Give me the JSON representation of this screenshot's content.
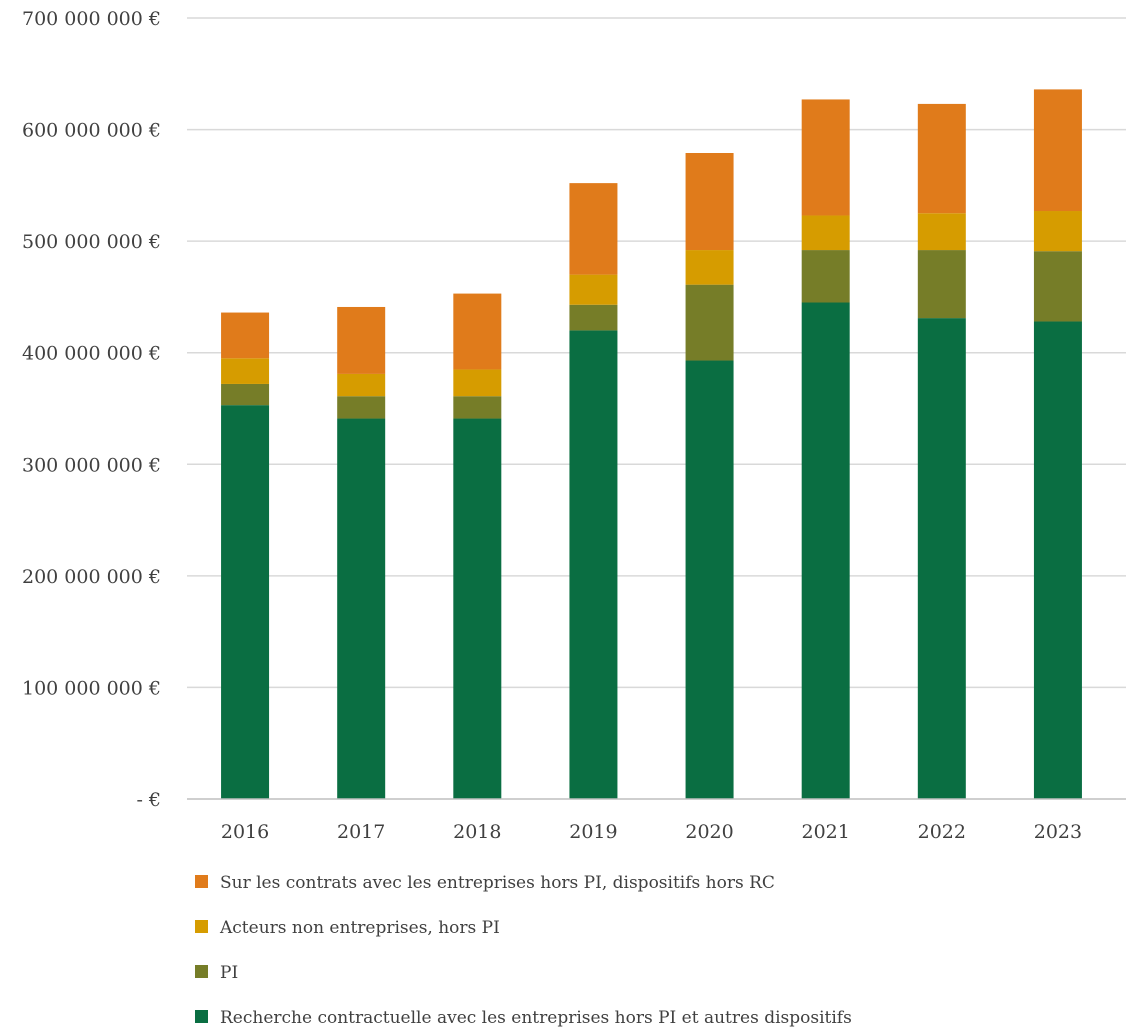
{
  "chart_data": {
    "type": "bar",
    "stacked": true,
    "title": "",
    "xlabel": "",
    "ylabel": "",
    "categories": [
      "2016",
      "2017",
      "2018",
      "2019",
      "2020",
      "2021",
      "2022",
      "2023"
    ],
    "series": [
      {
        "name": "Recherche contractuelle avec les entreprises hors PI et autres dispositifs",
        "color": "#0a6e42",
        "values": [
          353000000,
          341000000,
          341000000,
          420000000,
          393000000,
          445000000,
          431000000,
          428000000
        ]
      },
      {
        "name": "PI",
        "color": "#767d28",
        "values": [
          19000000,
          20000000,
          20000000,
          23000000,
          68000000,
          47000000,
          61000000,
          63000000
        ]
      },
      {
        "name": "Acteurs non entreprises, hors PI",
        "color": "#d69c00",
        "values": [
          23000000,
          20000000,
          24000000,
          27000000,
          31000000,
          31000000,
          33000000,
          36000000
        ]
      },
      {
        "name": "Sur les contrats avec les entreprises hors PI, dispositifs hors RC",
        "color": "#e07b1b",
        "values": [
          41000000,
          60000000,
          68000000,
          82000000,
          87000000,
          104000000,
          98000000,
          109000000
        ]
      }
    ],
    "ylim": [
      0,
      700000000
    ],
    "yticks": [
      {
        "value": 0,
        "label": "-  €"
      },
      {
        "value": 100000000,
        "label": "100 000 000 €"
      },
      {
        "value": 200000000,
        "label": "200 000 000 €"
      },
      {
        "value": 300000000,
        "label": "300 000 000 €"
      },
      {
        "value": 400000000,
        "label": "400 000 000 €"
      },
      {
        "value": 500000000,
        "label": "500 000 000 €"
      },
      {
        "value": 600000000,
        "label": "600 000 000 €"
      },
      {
        "value": 700000000,
        "label": "700 000 000 €"
      }
    ],
    "grid": true,
    "legend_position": "bottom",
    "legend_order": [
      3,
      2,
      1,
      0
    ]
  }
}
